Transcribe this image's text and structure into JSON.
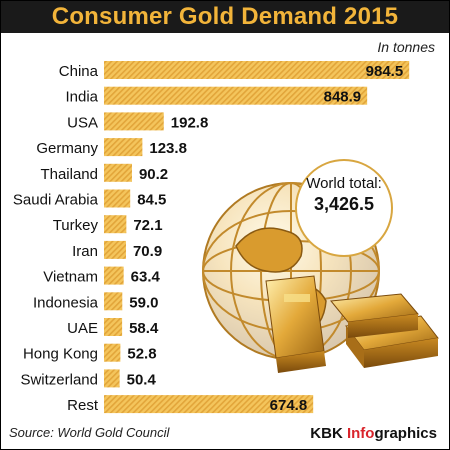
{
  "title": "Consumer Gold Demand 2015",
  "unit_note": "In tonnes",
  "world_total": {
    "label": "World total:",
    "value": "3,426.5"
  },
  "source": "Source: World Gold Council",
  "brand": {
    "prefix": "KBK ",
    "accent": "Info",
    "suffix": "graphics"
  },
  "colors": {
    "bar_fill": "#f4c55c",
    "bar_stripe": "#e2a53a",
    "title_bg": "#1a1a1a",
    "title_text": "#f2b43a",
    "brand_accent": "#d9242b",
    "callout_border": "#d8a640"
  },
  "chart_data": {
    "type": "bar",
    "orientation": "horizontal",
    "title": "Consumer Gold Demand 2015",
    "unit": "In tonnes",
    "categories": [
      "China",
      "India",
      "USA",
      "Germany",
      "Thailand",
      "Saudi Arabia",
      "Turkey",
      "Iran",
      "Vietnam",
      "Indonesia",
      "UAE",
      "Hong Kong",
      "Switzerland",
      "Rest"
    ],
    "values": [
      984.5,
      848.9,
      192.8,
      123.8,
      90.2,
      84.5,
      72.1,
      70.9,
      63.4,
      59.0,
      58.4,
      52.8,
      50.4,
      674.8
    ],
    "value_labels": [
      "984.5",
      "848.9",
      "192.8",
      "123.8",
      "90.2",
      "84.5",
      "72.1",
      "70.9",
      "63.4",
      "59.0",
      "58.4",
      "52.8",
      "50.4",
      "674.8"
    ],
    "grid": false,
    "legend": "none"
  }
}
